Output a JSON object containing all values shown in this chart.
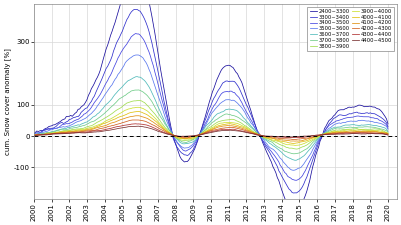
{
  "ylabel": "cum. Snow cover anomaly [%]",
  "ylim": [
    -200,
    420
  ],
  "yticks": [
    -100,
    0,
    100,
    300
  ],
  "xlim": [
    2000.0,
    2020.5
  ],
  "dashed_y": 0,
  "legend_labels": [
    "2400~3300",
    "3300~3400",
    "3400~3500",
    "3500~3600",
    "3600~3700",
    "3700~3800",
    "3800~3900",
    "3900~4000",
    "4000~4100",
    "4100~4200",
    "4200~4300",
    "4300~4400",
    "4400~4500"
  ],
  "line_colors": [
    "#1A0F9E",
    "#3030CC",
    "#4545E0",
    "#5A78EE",
    "#50BABA",
    "#70CC88",
    "#A0DC50",
    "#CCE030",
    "#E0C010",
    "#E09010",
    "#D06020",
    "#B03030",
    "#783030"
  ],
  "background_color": "#ffffff",
  "grid_color": "#d8d8d8",
  "xtick_years": [
    2000,
    2001,
    2002,
    2003,
    2004,
    2005,
    2006,
    2007,
    2008,
    2009,
    2010,
    2011,
    2012,
    2013,
    2014,
    2015,
    2016,
    2017,
    2018,
    2019,
    2020
  ]
}
